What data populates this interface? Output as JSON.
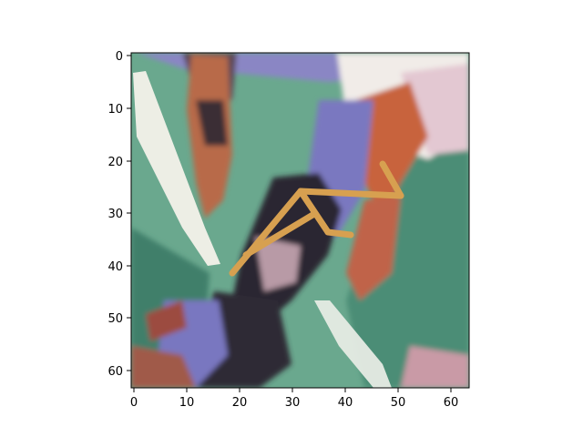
{
  "figure": {
    "kind": "image-plot",
    "background": "#ffffff",
    "axes": {
      "x_ticks": [
        "0",
        "10",
        "20",
        "30",
        "40",
        "50",
        "60"
      ],
      "y_ticks": [
        "0",
        "10",
        "20",
        "30",
        "40",
        "50",
        "60"
      ],
      "x_tick_values": [
        0,
        10,
        20,
        30,
        40,
        50,
        60
      ],
      "y_tick_values": [
        0,
        10,
        20,
        30,
        40,
        50,
        60
      ],
      "xlim": [
        -0.5,
        63.5
      ],
      "ylim": [
        63.5,
        -0.5
      ],
      "pixel_grid": 64,
      "frame_color": "#000000"
    },
    "image": {
      "palette": {
        "teal": "#6aa88e",
        "dark_teal": "#3f7f6a",
        "orange": "#c8643c",
        "white": "#f1ece8",
        "purple": "#7a78c0",
        "dark": "#2b2530",
        "gold": "#d7a050",
        "pink": "#c8a6b2"
      }
    }
  }
}
